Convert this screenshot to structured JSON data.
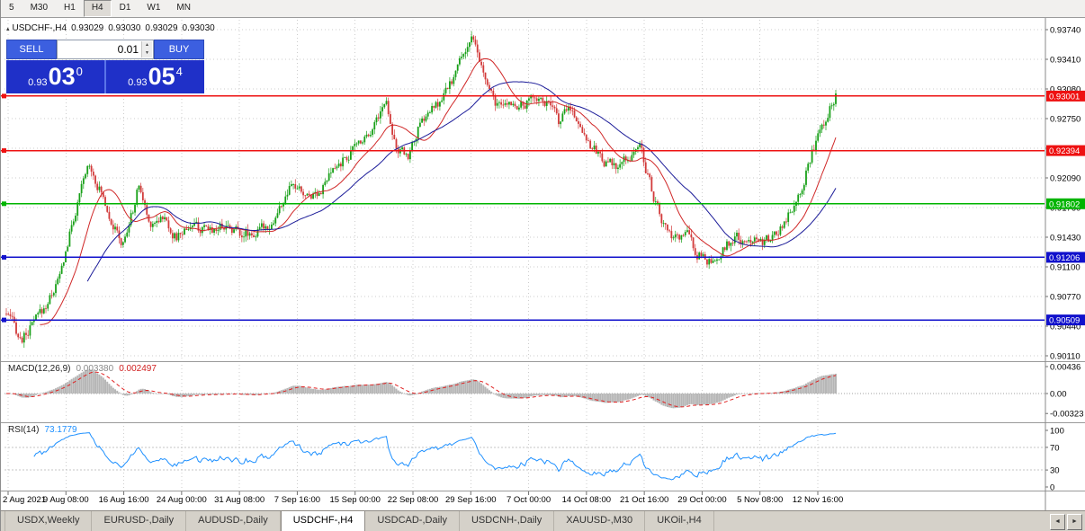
{
  "toolbar": {
    "periods": [
      "5",
      "M30",
      "H1",
      "H4",
      "D1",
      "W1",
      "MN"
    ],
    "active_period": "H4"
  },
  "symbol_info": {
    "symbol": "USDCHF-,H4",
    "open": "0.93029",
    "high": "0.93030",
    "low": "0.93029",
    "close": "0.93030"
  },
  "trade_panel": {
    "sell_label": "SELL",
    "buy_label": "BUY",
    "lot_value": "0.01",
    "sell_price": {
      "prefix": "0.93",
      "big": "03",
      "pip": "0"
    },
    "buy_price": {
      "prefix": "0.93",
      "big": "05",
      "pip": "4"
    }
  },
  "macd_panel": {
    "label": "MACD(12,26,9)",
    "main_value": "0.003380",
    "signal_value": "0.002497"
  },
  "rsi_panel": {
    "label": "RSI(14)",
    "value": "73.1779"
  },
  "icons": {
    "chart_marker": "▴",
    "spinner_up": "▲",
    "spinner_down": "▼",
    "tab_scroll_left": "◄",
    "tab_scroll_right": "►"
  },
  "tabs": {
    "items": [
      {
        "label": "USDX,Weekly",
        "active": false
      },
      {
        "label": "EURUSD-,Daily",
        "active": false
      },
      {
        "label": "AUDUSD-,Daily",
        "active": false
      },
      {
        "label": "USDCHF-,H4",
        "active": true
      },
      {
        "label": "USDCAD-,Daily",
        "active": false
      },
      {
        "label": "USDCNH-,Daily",
        "active": false
      },
      {
        "label": "XAUUSD-,M30",
        "active": false
      },
      {
        "label": "UKOil-,H4",
        "active": false
      }
    ]
  },
  "chart_data": {
    "type": "candlestick",
    "symbol": "USDCHF-",
    "timeframe": "H4",
    "title": "USDCHF-,H4",
    "ohlc_current": {
      "open": 0.93029,
      "high": 0.9303,
      "low": 0.93029,
      "close": 0.9303
    },
    "x_axis": {
      "labels": [
        "2 Aug 2021",
        "9 Aug 08:00",
        "16 Aug 16:00",
        "24 Aug 00:00",
        "31 Aug 08:00",
        "7 Sep 16:00",
        "15 Sep 00:00",
        "22 Sep 08:00",
        "29 Sep 16:00",
        "7 Oct 00:00",
        "14 Oct 08:00",
        "21 Oct 16:00",
        "29 Oct 00:00",
        "5 Nov 08:00",
        "12 Nov 16:00"
      ]
    },
    "y_axis": {
      "top_price": 0.9374,
      "step": 0.0033,
      "lines": 12
    },
    "up_color": "#18a018",
    "down_color": "#d23a3a",
    "candle_count": 420,
    "last_close": 0.9303,
    "price_path_anchors": [
      [
        0.0,
        0.9058
      ],
      [
        0.018,
        0.9028
      ],
      [
        0.045,
        0.9062
      ],
      [
        0.065,
        0.91
      ],
      [
        0.08,
        0.916
      ],
      [
        0.1,
        0.9226
      ],
      [
        0.118,
        0.9185
      ],
      [
        0.14,
        0.9132
      ],
      [
        0.152,
        0.917
      ],
      [
        0.16,
        0.9202
      ],
      [
        0.172,
        0.9158
      ],
      [
        0.188,
        0.9168
      ],
      [
        0.205,
        0.9142
      ],
      [
        0.222,
        0.9158
      ],
      [
        0.24,
        0.9148
      ],
      [
        0.262,
        0.9158
      ],
      [
        0.282,
        0.915
      ],
      [
        0.302,
        0.9148
      ],
      [
        0.322,
        0.9162
      ],
      [
        0.345,
        0.92
      ],
      [
        0.362,
        0.9188
      ],
      [
        0.38,
        0.9198
      ],
      [
        0.4,
        0.9222
      ],
      [
        0.422,
        0.9245
      ],
      [
        0.442,
        0.9268
      ],
      [
        0.458,
        0.9295
      ],
      [
        0.472,
        0.9238
      ],
      [
        0.484,
        0.9232
      ],
      [
        0.496,
        0.9262
      ],
      [
        0.51,
        0.9282
      ],
      [
        0.524,
        0.9292
      ],
      [
        0.538,
        0.9318
      ],
      [
        0.55,
        0.9345
      ],
      [
        0.56,
        0.9366
      ],
      [
        0.572,
        0.9332
      ],
      [
        0.584,
        0.93
      ],
      [
        0.596,
        0.9284
      ],
      [
        0.61,
        0.9294
      ],
      [
        0.624,
        0.9288
      ],
      [
        0.638,
        0.9302
      ],
      [
        0.652,
        0.9292
      ],
      [
        0.666,
        0.9272
      ],
      [
        0.68,
        0.9288
      ],
      [
        0.694,
        0.9264
      ],
      [
        0.708,
        0.9242
      ],
      [
        0.722,
        0.9228
      ],
      [
        0.736,
        0.9218
      ],
      [
        0.75,
        0.9232
      ],
      [
        0.764,
        0.9245
      ],
      [
        0.778,
        0.9196
      ],
      [
        0.79,
        0.916
      ],
      [
        0.805,
        0.9136
      ],
      [
        0.82,
        0.9148
      ],
      [
        0.832,
        0.9125
      ],
      [
        0.845,
        0.9118
      ],
      [
        0.856,
        0.9108
      ],
      [
        0.868,
        0.9135
      ],
      [
        0.88,
        0.9142
      ],
      [
        0.892,
        0.9132
      ],
      [
        0.902,
        0.9148
      ],
      [
        0.912,
        0.914
      ],
      [
        0.922,
        0.9138
      ],
      [
        0.932,
        0.9152
      ],
      [
        0.945,
        0.9172
      ],
      [
        0.958,
        0.92
      ],
      [
        0.97,
        0.9235
      ],
      [
        0.982,
        0.9262
      ],
      [
        0.992,
        0.9288
      ],
      [
        1.0,
        0.9302
      ]
    ],
    "moving_averages": [
      {
        "name": "ma-fast",
        "period": 18,
        "color": "#d02828"
      },
      {
        "name": "ma-slow",
        "period": 42,
        "color": "#1c1c99"
      }
    ],
    "horizontal_lines": [
      {
        "price": 0.93001,
        "label": "0.93001",
        "color": "#ee1111"
      },
      {
        "price": 0.92394,
        "label": "0.92394",
        "color": "#ee1111"
      },
      {
        "price": 0.91802,
        "label": "0.91802",
        "color": "#00b400"
      },
      {
        "price": 0.91206,
        "label": "0.91206",
        "color": "#1111cc"
      },
      {
        "price": 0.90509,
        "label": "0.90509",
        "color": "#1111cc"
      }
    ],
    "indicators": [
      {
        "type": "macd",
        "fast": 12,
        "slow": 26,
        "signal": 9,
        "current_main": 0.00338,
        "current_signal": 0.002497,
        "histogram_color": "#b6b6b6",
        "signal_color": "#e02020",
        "scale": [
          {
            "v": 0.00436,
            "t": "0.00436"
          },
          {
            "v": 0,
            "t": "0.00"
          },
          {
            "v": -0.00323,
            "t": "-0.00323"
          }
        ]
      },
      {
        "type": "rsi",
        "period": 14,
        "current": 73.1779,
        "color": "#1e90ff",
        "levels": [
          70,
          30
        ],
        "scale": [
          {
            "v": 100,
            "t": "100"
          },
          {
            "v": 70,
            "t": "70"
          },
          {
            "v": 30,
            "t": "30"
          },
          {
            "v": 0,
            "t": "0"
          }
        ]
      }
    ]
  }
}
